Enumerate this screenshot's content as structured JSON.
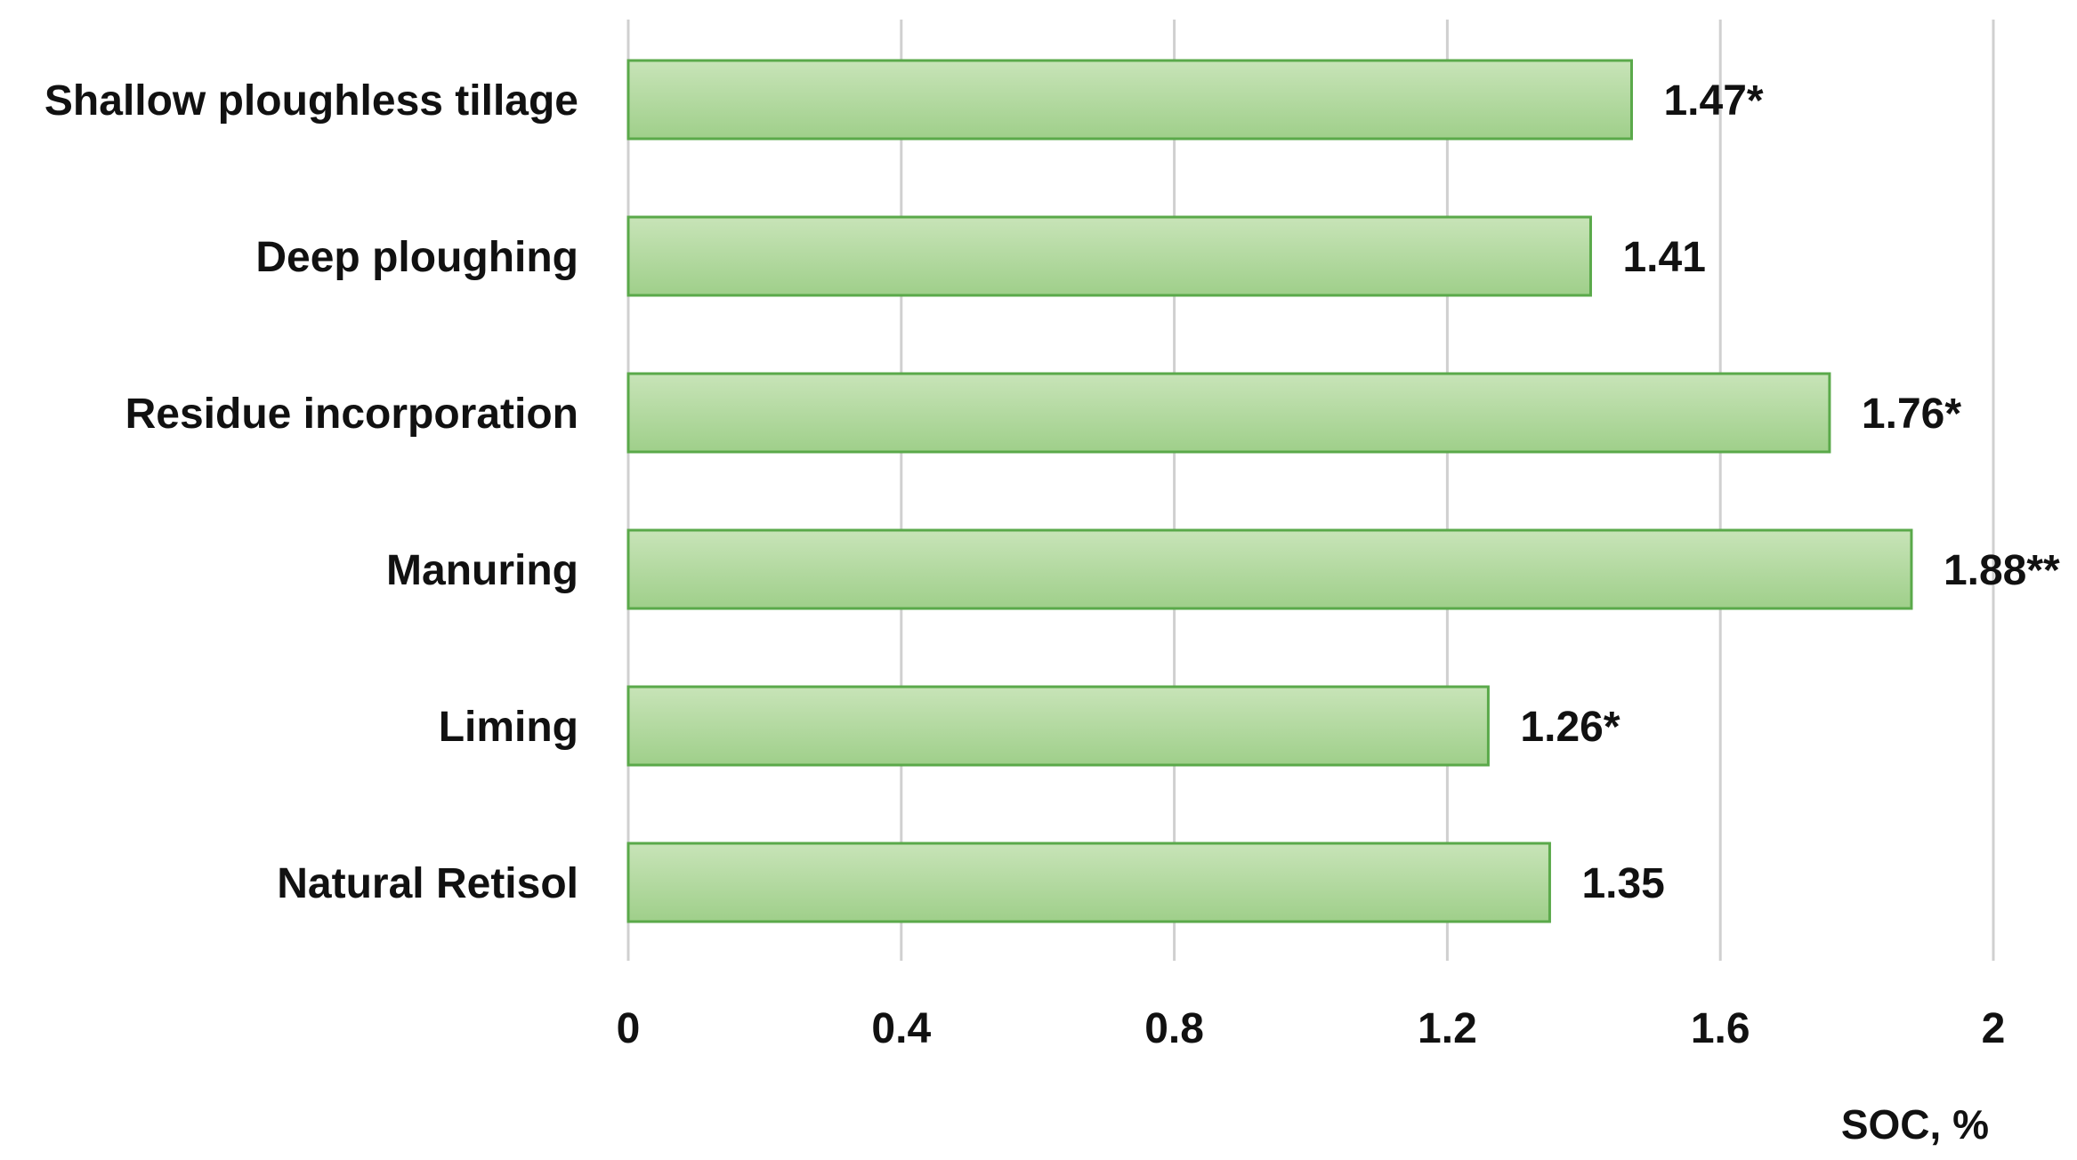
{
  "chart_data": {
    "type": "bar",
    "orientation": "horizontal",
    "categories": [
      "Shallow ploughless tillage",
      "Deep ploughing",
      "Residue incorporation",
      "Manuring",
      "Liming",
      "Natural Retisol"
    ],
    "values": [
      1.47,
      1.41,
      1.76,
      1.88,
      1.26,
      1.35
    ],
    "data_labels": [
      "1.47*",
      "1.41",
      "1.76*",
      "1.88**",
      "1.26*",
      "1.35"
    ],
    "xlabel": "SOC, %",
    "ylabel": "",
    "title": "",
    "xlim": [
      0,
      2
    ],
    "x_ticks": [
      0,
      0.4,
      0.8,
      1.2,
      1.6,
      2
    ],
    "x_tick_labels": [
      "0",
      "0.4",
      "0.8",
      "1.2",
      "1.6",
      "2"
    ],
    "grid": "vertical",
    "legend": "none",
    "colors": {
      "bar_fill_top": "#c8e4b8",
      "bar_fill_bottom": "#9fcf8a",
      "bar_stroke": "#5aa94a",
      "grid": "#d0d0d0"
    }
  }
}
